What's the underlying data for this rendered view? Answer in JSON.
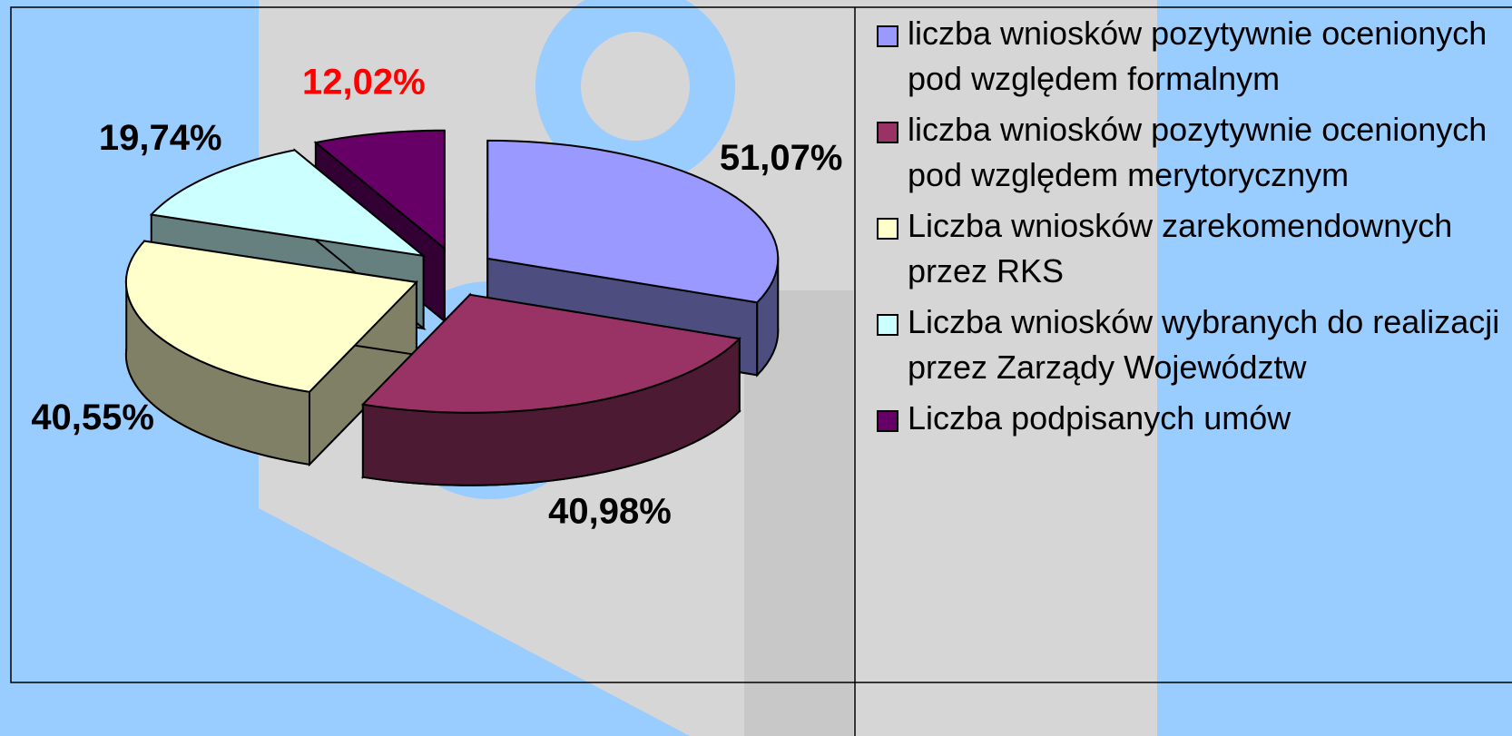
{
  "chart_data": {
    "type": "pie",
    "categories": [
      "liczba wniosków pozytywnie ocenionych pod względem formalnym",
      "liczba wniosków pozytywnie ocenionych pod względem merytorycznym",
      "Liczba wniosków zarekomendownych przez RKS",
      "Liczba wniosków wybranych do realizacji przez Zarządy Województw",
      "Liczba podpisanych umów"
    ],
    "values": [
      51.07,
      40.98,
      40.55,
      19.74,
      12.02
    ],
    "value_labels": [
      "51,07%",
      "40,98%",
      "40,55%",
      "19,74%",
      "12,02%"
    ],
    "colors": [
      "#9999ff",
      "#993366",
      "#ffffcc",
      "#ccffff",
      "#660066"
    ],
    "value_label_colors": [
      "#000000",
      "#000000",
      "#000000",
      "#000000",
      "#ff0000"
    ],
    "legend": "right"
  }
}
